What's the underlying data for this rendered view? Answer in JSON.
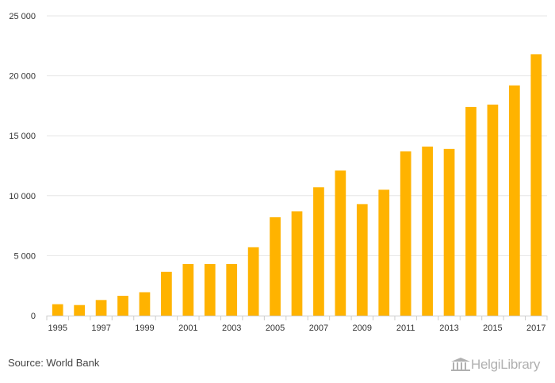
{
  "chart_data": {
    "type": "bar",
    "categories": [
      "1995",
      "1996",
      "1997",
      "1998",
      "1999",
      "2000",
      "2001",
      "2002",
      "2003",
      "2004",
      "2005",
      "2006",
      "2007",
      "2008",
      "2009",
      "2010",
      "2011",
      "2012",
      "2013",
      "2014",
      "2015",
      "2016",
      "2017"
    ],
    "values": [
      950,
      880,
      1300,
      1650,
      1950,
      3650,
      4300,
      4300,
      4300,
      5700,
      8200,
      8700,
      10700,
      12100,
      9300,
      10500,
      13700,
      14100,
      13900,
      17400,
      17600,
      19200,
      21800
    ],
    "x_tick_labels": [
      "1995",
      "1997",
      "1999",
      "2001",
      "2003",
      "2005",
      "2007",
      "2009",
      "2011",
      "2013",
      "2015",
      "2017"
    ],
    "y_ticks": [
      0,
      5000,
      10000,
      15000,
      20000,
      25000
    ],
    "y_tick_labels": [
      "0",
      "5 000",
      "10 000",
      "15 000",
      "20 000",
      "25 000"
    ],
    "ylim": [
      0,
      25000
    ],
    "grid": true,
    "bar_color": "#FFB300",
    "title": "",
    "xlabel": "",
    "ylabel": ""
  },
  "footer": {
    "source": "Source: World Bank",
    "logo_text": "HelgiLibrary"
  },
  "colors": {
    "grid": "#e6e6e6",
    "axis": "#cccccc",
    "logo": "#b0b0b0"
  }
}
